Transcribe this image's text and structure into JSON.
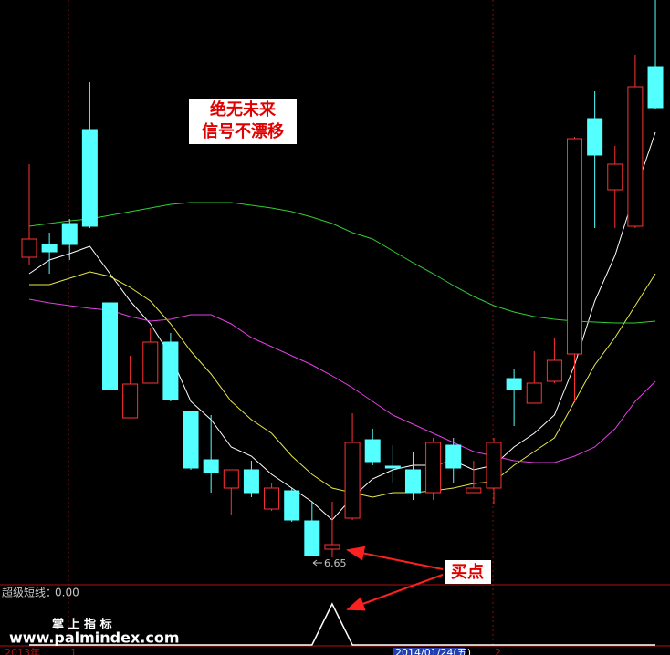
{
  "chart_data": {
    "type": "candlestick",
    "ylim": [
      6.36,
      12.76
    ],
    "up_color": "#ff3232",
    "down_color": "#54ffff",
    "open": [
      9.94,
      10.08,
      10.31,
      11.34,
      9.44,
      8.18,
      8.56,
      9.01,
      8.25,
      7.72,
      7.41,
      7.61,
      7.18,
      7.38,
      7.05,
      6.74,
      7.08,
      7.94,
      7.65,
      7.61,
      7.36,
      7.88,
      7.36,
      7.41,
      8.61,
      8.34,
      8.58,
      8.88,
      11.46,
      10.68,
      10.28,
      12.03
    ],
    "high": [
      10.96,
      10.21,
      10.36,
      11.86,
      9.86,
      8.86,
      9.16,
      9.11,
      8.26,
      8.21,
      7.61,
      7.71,
      7.46,
      7.41,
      7.26,
      7.26,
      8.23,
      8.06,
      7.88,
      7.81,
      7.96,
      7.96,
      7.71,
      7.96,
      8.71,
      8.91,
      9.06,
      11.26,
      11.76,
      11.16,
      12.16,
      12.76
    ],
    "low": [
      9.86,
      9.76,
      9.91,
      10.26,
      8.48,
      8.18,
      8.56,
      8.36,
      7.61,
      7.36,
      7.11,
      7.31,
      7.16,
      7.04,
      6.67,
      6.65,
      7.06,
      7.66,
      7.46,
      7.28,
      7.28,
      7.46,
      7.36,
      7.24,
      8.09,
      8.34,
      8.56,
      8.36,
      10.26,
      10.26,
      10.26,
      11.56
    ],
    "close": [
      10.14,
      10.0,
      10.08,
      10.28,
      8.49,
      8.55,
      9.01,
      8.38,
      7.63,
      7.58,
      7.61,
      7.36,
      7.41,
      7.06,
      6.67,
      6.79,
      7.91,
      7.7,
      7.63,
      7.36,
      7.91,
      7.63,
      7.41,
      7.91,
      8.49,
      8.56,
      8.81,
      11.24,
      11.06,
      10.96,
      11.81,
      11.58
    ],
    "series": [
      {
        "color": "#ffffff",
        "values": [
          9.76,
          9.91,
          9.98,
          10.06,
          9.76,
          9.46,
          9.21,
          8.86,
          8.36,
          8.16,
          7.86,
          7.76,
          7.56,
          7.41,
          7.26,
          7.06,
          7.31,
          7.51,
          7.61,
          7.66,
          7.66,
          7.71,
          7.61,
          7.66,
          7.86,
          8.01,
          8.21,
          8.76,
          9.46,
          9.96,
          10.66,
          11.31
        ]
      },
      {
        "color": "#e8e84a",
        "values": [
          9.64,
          9.64,
          9.71,
          9.78,
          9.73,
          9.61,
          9.46,
          9.21,
          8.91,
          8.66,
          8.36,
          8.16,
          8.01,
          7.76,
          7.56,
          7.41,
          7.36,
          7.31,
          7.36,
          7.36,
          7.38,
          7.41,
          7.46,
          7.48,
          7.66,
          7.81,
          7.96,
          8.36,
          8.76,
          9.06,
          9.41,
          9.76
        ]
      },
      {
        "color": "#e040e0",
        "values": [
          9.48,
          9.44,
          9.41,
          9.38,
          9.36,
          9.29,
          9.24,
          9.26,
          9.31,
          9.31,
          9.21,
          9.06,
          8.96,
          8.86,
          8.76,
          8.64,
          8.51,
          8.36,
          8.21,
          8.11,
          8.01,
          7.91,
          7.81,
          7.76,
          7.71,
          7.69,
          7.69,
          7.76,
          7.86,
          8.06,
          8.36,
          8.58
        ]
      },
      {
        "color": "#33cc33",
        "values": [
          10.28,
          10.31,
          10.34,
          10.36,
          10.4,
          10.44,
          10.48,
          10.52,
          10.54,
          10.54,
          10.54,
          10.51,
          10.48,
          10.44,
          10.38,
          10.31,
          10.21,
          10.14,
          10.01,
          9.88,
          9.76,
          9.63,
          9.51,
          9.41,
          9.34,
          9.29,
          9.26,
          9.24,
          9.23,
          9.22,
          9.22,
          9.24
        ]
      }
    ],
    "low_annotation": 6.65,
    "annotations": [
      "绝无未来",
      "信号不漂移"
    ],
    "buy_annotation": "买点",
    "indicator": {
      "name": "超级短线：",
      "value": 0,
      "value_label": "0.00",
      "ylim": [
        0,
        1
      ],
      "color": "#ffffff",
      "values": [
        0,
        0,
        0,
        0,
        0,
        0,
        0,
        0,
        0,
        0,
        0,
        0,
        0,
        0,
        0,
        1,
        0,
        0,
        0,
        0,
        0,
        0,
        0,
        0,
        0,
        0,
        0,
        0,
        0,
        0,
        0,
        0
      ]
    },
    "x_axis_labels": [
      "2013年",
      "1",
      "2"
    ],
    "cursor_date": "2014/01/24(五)",
    "watermark": [
      "掌 上 指 标",
      "www.palmindex.com"
    ]
  }
}
